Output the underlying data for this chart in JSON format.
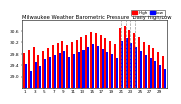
{
  "title": "Milwaukee Weather Barometric Pressure",
  "subtitle": "Daily High/Low",
  "high_color": "#ff0000",
  "low_color": "#0000ff",
  "background_color": "#ffffff",
  "ylim": [
    28.6,
    31.0
  ],
  "yticks": [
    29.0,
    29.4,
    29.8,
    30.2,
    30.6
  ],
  "ytick_labels": [
    "29.0",
    "29.4",
    "29.8",
    "30.2",
    "30.6"
  ],
  "high_values": [
    29.82,
    29.95,
    30.05,
    29.75,
    29.9,
    30.0,
    30.1,
    30.18,
    30.25,
    30.1,
    30.2,
    30.3,
    30.38,
    30.48,
    30.58,
    30.52,
    30.45,
    30.35,
    30.25,
    30.15,
    30.7,
    30.78,
    30.65,
    30.52,
    30.38,
    30.22,
    30.1,
    30.0,
    29.88,
    29.72
  ],
  "low_values": [
    29.45,
    29.2,
    29.52,
    29.38,
    29.62,
    29.68,
    29.75,
    29.82,
    29.9,
    29.68,
    29.78,
    29.88,
    29.95,
    30.05,
    30.15,
    30.08,
    29.98,
    29.88,
    29.78,
    29.65,
    30.25,
    30.35,
    30.18,
    30.05,
    29.9,
    29.75,
    29.65,
    29.55,
    29.42,
    29.28
  ],
  "n_bars": 30,
  "xlabels_pos": [
    0,
    2,
    4,
    6,
    8,
    10,
    12,
    14,
    16,
    18,
    20,
    22,
    24,
    26,
    28
  ],
  "xlabels": [
    "1",
    "3",
    "5",
    "7",
    "9",
    "11",
    "13",
    "15",
    "17",
    "19",
    "21",
    "23",
    "25",
    "27",
    "29"
  ],
  "dashed_indices": [
    20,
    21,
    22,
    23
  ],
  "bar_width": 0.42,
  "ytick_fontsize": 3.2,
  "xtick_fontsize": 3.0,
  "title_fontsize": 3.8,
  "legend_fontsize": 3.0
}
